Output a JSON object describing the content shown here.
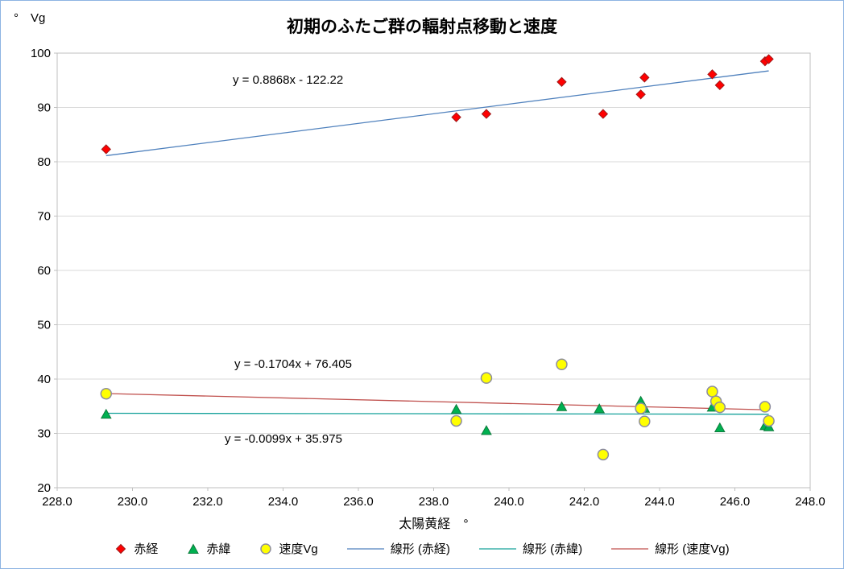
{
  "chart_data": {
    "type": "scatter",
    "title": "初期のふたご群の輻射点移動と速度",
    "xlabel": "太陽黄経　°",
    "ylabel": "°　Vg",
    "xlim": [
      228,
      248
    ],
    "ylim": [
      20,
      100
    ],
    "x_ticks": [
      "228.0",
      "230.0",
      "232.0",
      "234.0",
      "236.0",
      "238.0",
      "240.0",
      "242.0",
      "244.0",
      "246.0",
      "248.0"
    ],
    "y_ticks": [
      "20",
      "30",
      "40",
      "50",
      "60",
      "70",
      "80",
      "90",
      "100"
    ],
    "grid": "horizontal",
    "legend_position": "bottom",
    "colors": {
      "grid": "#D9D9D9",
      "axis": "#BFBFBF",
      "chart_border": "#8DB4E2"
    },
    "series": [
      {
        "name": "赤経",
        "marker": "diamond",
        "fill": "#FF0000",
        "stroke": "#9E1B1B",
        "points": [
          [
            229.3,
            82.3
          ],
          [
            238.6,
            88.2
          ],
          [
            239.4,
            88.8
          ],
          [
            241.4,
            94.7
          ],
          [
            242.5,
            88.8
          ],
          [
            243.5,
            92.4
          ],
          [
            243.6,
            95.5
          ],
          [
            245.4,
            96.1
          ],
          [
            245.6,
            94.1
          ],
          [
            246.8,
            98.5
          ],
          [
            246.9,
            98.9
          ]
        ]
      },
      {
        "name": "赤緯",
        "marker": "triangle",
        "fill": "#00B050",
        "stroke": "#0E7B3D",
        "points": [
          [
            229.3,
            33.5
          ],
          [
            238.6,
            34.4
          ],
          [
            239.4,
            30.5
          ],
          [
            241.4,
            34.9
          ],
          [
            242.4,
            34.5
          ],
          [
            243.5,
            35.9
          ],
          [
            243.6,
            34.6
          ],
          [
            245.4,
            34.8
          ],
          [
            245.6,
            31.0
          ],
          [
            246.8,
            31.4
          ],
          [
            246.9,
            31.2
          ]
        ]
      },
      {
        "name": "速度Vg",
        "marker": "circle",
        "fill": "#FFFF00",
        "stroke": "#8D8D9E",
        "points": [
          [
            229.3,
            37.3
          ],
          [
            238.6,
            32.3
          ],
          [
            239.4,
            40.2
          ],
          [
            241.4,
            42.7
          ],
          [
            242.5,
            26.1
          ],
          [
            243.5,
            34.6
          ],
          [
            243.6,
            32.2
          ],
          [
            245.4,
            37.7
          ],
          [
            245.5,
            35.9
          ],
          [
            245.6,
            34.8
          ],
          [
            246.8,
            34.9
          ],
          [
            246.9,
            32.3
          ]
        ]
      }
    ],
    "trendlines": [
      {
        "name": "線形 (赤経)",
        "slope": 0.8868,
        "intercept": -122.22,
        "x_start": 229.3,
        "x_end": 246.9,
        "color": "#4F81BD"
      },
      {
        "name": "線形 (赤緯)",
        "slope": -0.0099,
        "intercept": 35.975,
        "x_start": 229.3,
        "x_end": 246.9,
        "color": "#17A29B"
      },
      {
        "name": "線形 (速度Vg)",
        "slope": -0.1704,
        "intercept": 76.405,
        "x_start": 229.3,
        "x_end": 246.9,
        "color": "#C0504D"
      }
    ],
    "annotations": [
      {
        "text": "y = 0.8868x - 122.22",
        "series": "赤経"
      },
      {
        "text": "y = -0.1704x + 76.405",
        "series": "速度Vg"
      },
      {
        "text": "y = -0.0099x + 35.975",
        "series": "赤緯"
      }
    ],
    "legend": [
      {
        "label": "赤経",
        "marker": "diamond"
      },
      {
        "label": "赤緯",
        "marker": "triangle"
      },
      {
        "label": "速度Vg",
        "marker": "circle"
      },
      {
        "label": "線形 (赤経)",
        "marker": "line"
      },
      {
        "label": "線形 (赤緯)",
        "marker": "line"
      },
      {
        "label": "線形 (速度Vg)",
        "marker": "line"
      }
    ]
  }
}
